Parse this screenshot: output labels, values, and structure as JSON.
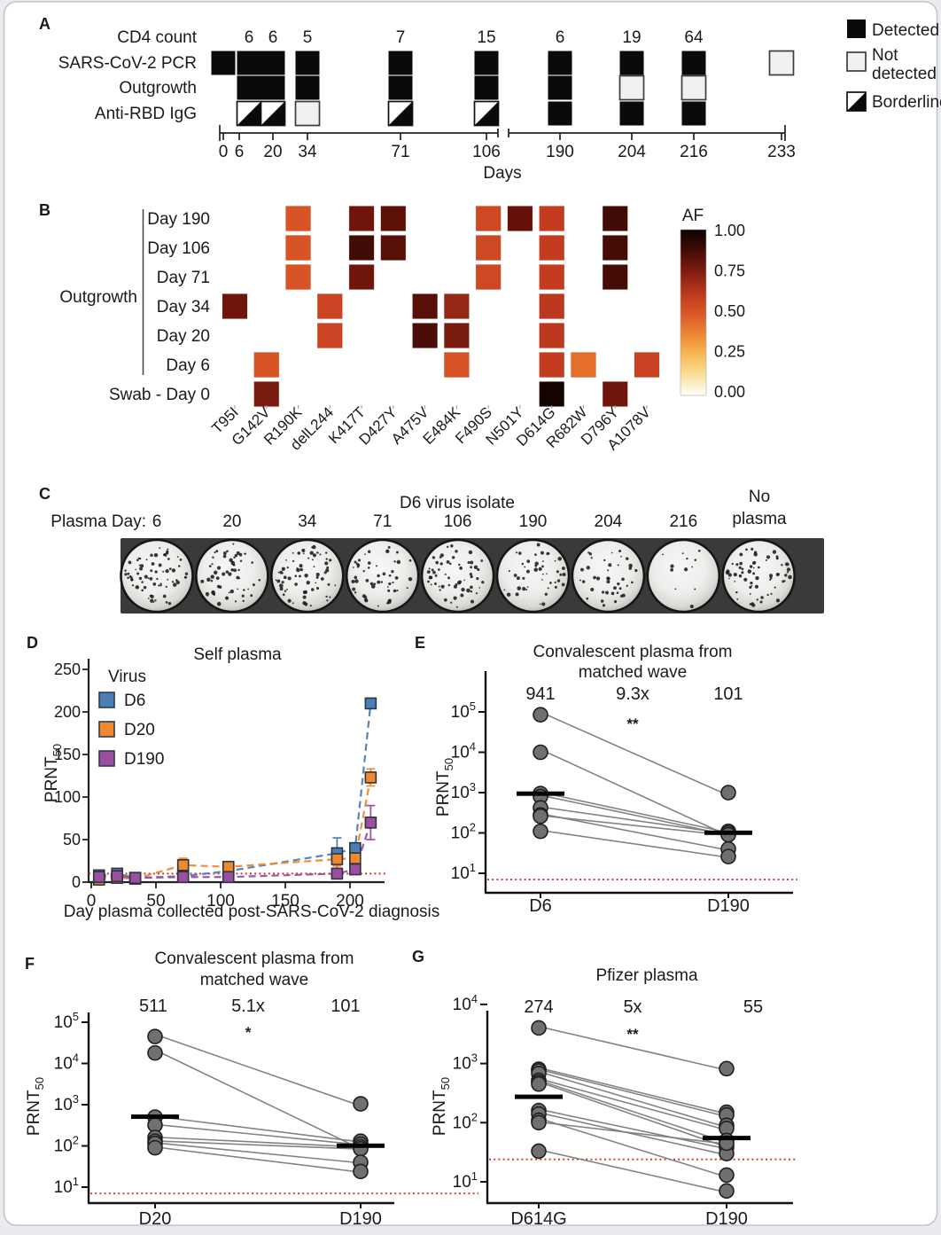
{
  "chart_data": [
    {
      "panel": "A",
      "type": "table",
      "rows": [
        "CD4 count",
        "SARS-CoV-2 PCR",
        "Outgrowth",
        "Anti-RBD IgG"
      ],
      "days": [
        0,
        6,
        20,
        34,
        71,
        106,
        190,
        204,
        216,
        233
      ],
      "cd4_counts": [
        "",
        "6",
        "6",
        "5",
        "7",
        "15",
        "6",
        "19",
        "64",
        ""
      ],
      "sars_cov_2_pcr": [
        "D",
        "D",
        "D",
        "D",
        "D",
        "D",
        "D",
        "D",
        "D",
        "N"
      ],
      "outgrowth": [
        "",
        "D",
        "D",
        "D",
        "D",
        "D",
        "D",
        "N",
        "N",
        ""
      ],
      "anti_rbd_igg": [
        "",
        "B",
        "B",
        "N",
        "B",
        "B",
        "D",
        "D",
        "D",
        ""
      ],
      "code_legend": {
        "D": "Detected",
        "N": "Not detected",
        "B": "Borderline"
      },
      "xlabel": "Days",
      "legend": {
        "detected": "Detected",
        "not_detected": [
          "Not",
          "detected"
        ],
        "borderline": "Borderline"
      }
    },
    {
      "panel": "B",
      "type": "heatmap",
      "group_label": "Outgrowth",
      "rows": [
        "Day 190",
        "Day 106",
        "Day 71",
        "Day 34",
        "Day 20",
        "Day 6",
        "Swab -  Day 0"
      ],
      "mutations": [
        "T95I",
        "G142V",
        "R190K",
        "delL244",
        "K417T",
        "D427Y",
        "A475V",
        "E484K",
        "F490S",
        "N501Y",
        "D614G",
        "R682W",
        "D796Y",
        "A1078V"
      ],
      "cells": [
        [
          0,
          2,
          0.5
        ],
        [
          0,
          4,
          0.78
        ],
        [
          0,
          5,
          0.82
        ],
        [
          0,
          8,
          0.55
        ],
        [
          0,
          9,
          0.8
        ],
        [
          0,
          10,
          0.6
        ],
        [
          0,
          12,
          0.88
        ],
        [
          1,
          2,
          0.5
        ],
        [
          1,
          4,
          0.88
        ],
        [
          1,
          5,
          0.83
        ],
        [
          1,
          8,
          0.55
        ],
        [
          1,
          10,
          0.6
        ],
        [
          1,
          12,
          0.87
        ],
        [
          2,
          2,
          0.5
        ],
        [
          2,
          4,
          0.78
        ],
        [
          2,
          8,
          0.55
        ],
        [
          2,
          10,
          0.6
        ],
        [
          2,
          12,
          0.87
        ],
        [
          3,
          0,
          0.78
        ],
        [
          3,
          3,
          0.57
        ],
        [
          3,
          6,
          0.83
        ],
        [
          3,
          7,
          0.7
        ],
        [
          3,
          10,
          0.62
        ],
        [
          4,
          3,
          0.57
        ],
        [
          4,
          6,
          0.86
        ],
        [
          4,
          7,
          0.76
        ],
        [
          4,
          10,
          0.62
        ],
        [
          5,
          1,
          0.5
        ],
        [
          5,
          7,
          0.5
        ],
        [
          5,
          10,
          0.6
        ],
        [
          5,
          11,
          0.42
        ],
        [
          5,
          13,
          0.58
        ],
        [
          6,
          1,
          0.76
        ],
        [
          6,
          10,
          0.98
        ],
        [
          6,
          12,
          0.78
        ]
      ],
      "colorbar": {
        "title": "AF",
        "ticks": [
          "1.00",
          "0.75",
          "0.50",
          "0.25",
          "0.00"
        ],
        "min": 0,
        "max": 1
      }
    },
    {
      "panel": "C",
      "type": "well-images",
      "title": "D6 virus isolate",
      "row_label": "Plasma Day:",
      "plasma_days": [
        "6",
        "20",
        "34",
        "71",
        "106",
        "190",
        "204",
        "216"
      ],
      "no_plasma_label": [
        "No",
        "plasma"
      ],
      "plaque_counts": [
        72,
        58,
        66,
        52,
        58,
        46,
        40,
        12,
        64
      ]
    },
    {
      "panel": "D",
      "type": "line",
      "title": "Self plasma",
      "xlabel": "Day plasma collected post-SARS-CoV-2 diagnosis",
      "ylabel_main": "PRNT",
      "ylabel_sub": "50",
      "legend_title": "Virus",
      "x": [
        6,
        20,
        34,
        71,
        106,
        190,
        204,
        216
      ],
      "xticks": [
        0,
        50,
        100,
        150,
        200
      ],
      "yticks": [
        0,
        50,
        100,
        150,
        200,
        250
      ],
      "ylim": [
        0,
        250
      ],
      "threshold": 10,
      "threshold_color": "#cf3526",
      "series": [
        {
          "name": "D6",
          "color": "#4A7FB5",
          "values": [
            8,
            10,
            5,
            7,
            13,
            34,
            40,
            210
          ],
          "err": [
            2,
            2,
            2,
            2,
            2,
            18,
            4,
            6
          ]
        },
        {
          "name": "D20",
          "color": "#F0882C",
          "values": [
            3,
            5,
            4,
            20,
            18,
            27,
            28,
            123
          ],
          "err": [
            2,
            2,
            2,
            8,
            3,
            8,
            4,
            10
          ]
        },
        {
          "name": "D190",
          "color": "#9A4FA0",
          "values": [
            6,
            7,
            5,
            6,
            6,
            10,
            15,
            70
          ],
          "err": [
            2,
            2,
            2,
            2,
            2,
            3,
            3,
            20
          ]
        }
      ]
    },
    {
      "panel": "E",
      "type": "paired-scatter",
      "title": [
        "Convalescent plasma from",
        "matched wave"
      ],
      "ylabel_main": "PRNT",
      "ylabel_sub": "50",
      "categories": [
        "D6",
        "D190"
      ],
      "stats": {
        "left": "941",
        "fold": "9.3x",
        "right": "101",
        "significance": "**"
      },
      "fold_color": "#e02b20",
      "yticks_exp": [
        5,
        4,
        3,
        2,
        1
      ],
      "threshold": 7,
      "means": [
        941,
        101
      ],
      "pairs": [
        [
          85000,
          1000
        ],
        [
          10000,
          100
        ],
        [
          950,
          110
        ],
        [
          800,
          95
        ],
        [
          420,
          100
        ],
        [
          280,
          40
        ],
        [
          260,
          90
        ],
        [
          110,
          26
        ]
      ]
    },
    {
      "panel": "F",
      "type": "paired-scatter",
      "title": [
        "Convalescent plasma from",
        "matched wave"
      ],
      "ylabel_main": "PRNT",
      "ylabel_sub": "50",
      "categories": [
        "D20",
        "D190"
      ],
      "stats": {
        "left": "511",
        "fold": "5.1x",
        "right": "101",
        "significance": "*"
      },
      "fold_color": "#e02b20",
      "yticks_exp": [
        5,
        4,
        3,
        2,
        1
      ],
      "threshold": 7,
      "means": [
        511,
        101
      ],
      "pairs": [
        [
          45000,
          1050
        ],
        [
          18000,
          100
        ],
        [
          500,
          130
        ],
        [
          320,
          110
        ],
        [
          160,
          95
        ],
        [
          130,
          85
        ],
        [
          115,
          40
        ],
        [
          90,
          24
        ]
      ]
    },
    {
      "panel": "G",
      "type": "paired-scatter",
      "title": [
        "Pfizer plasma"
      ],
      "ylabel_main": "PRNT",
      "ylabel_sub": "50",
      "categories": [
        "D614G",
        "D190"
      ],
      "stats": {
        "left": "274",
        "fold": "5x",
        "right": "55",
        "significance": "**"
      },
      "fold_color": "#e02b20",
      "yticks_exp": [
        4,
        3,
        2,
        1
      ],
      "threshold": 24,
      "means": [
        274,
        55
      ],
      "pairs": [
        [
          4000,
          820
        ],
        [
          800,
          150
        ],
        [
          750,
          135
        ],
        [
          680,
          90
        ],
        [
          520,
          80
        ],
        [
          480,
          50
        ],
        [
          450,
          42
        ],
        [
          160,
          38
        ],
        [
          140,
          30
        ],
        [
          110,
          13
        ],
        [
          100,
          45
        ],
        [
          33,
          7
        ]
      ]
    }
  ]
}
